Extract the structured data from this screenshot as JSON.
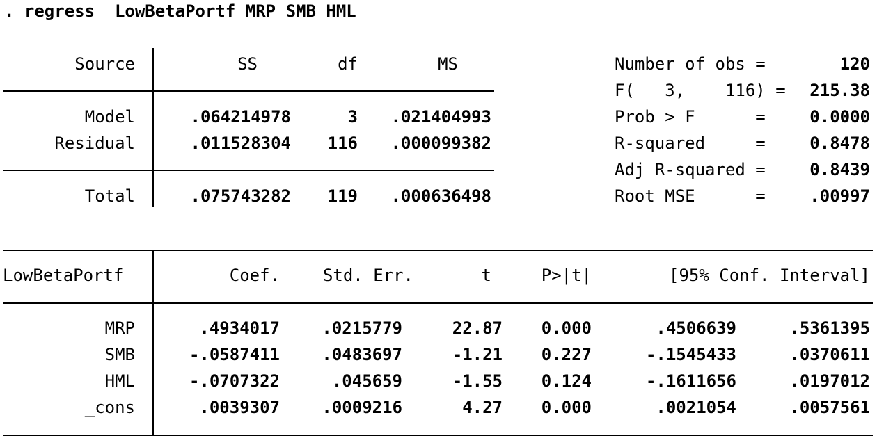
{
  "command": ". regress  LowBetaPortf MRP SMB HML",
  "anova": {
    "headers": [
      "Source",
      "SS",
      "df",
      "MS"
    ],
    "rows": [
      {
        "source": "Model",
        "ss": ".064214978",
        "df": "3",
        "ms": ".021404993"
      },
      {
        "source": "Residual",
        "ss": ".011528304",
        "df": "116",
        "ms": ".000099382"
      }
    ],
    "total": {
      "source": "Total",
      "ss": ".075743282",
      "df": "119",
      "ms": ".000636498"
    }
  },
  "stats": [
    {
      "label": "Number of obs =",
      "value": "120"
    },
    {
      "label": "F(   3,    116) =",
      "value": "215.38"
    },
    {
      "label": "Prob > F      =",
      "value": "0.0000"
    },
    {
      "label": "R-squared     =",
      "value": "0.8478"
    },
    {
      "label": "Adj R-squared =",
      "value": "0.8439"
    },
    {
      "label": "Root MSE      =",
      "value": ".00997"
    }
  ],
  "coef": {
    "headers": [
      "LowBetaPortf",
      "Coef.",
      "Std. Err.",
      "t",
      "P>|t|",
      "[95% Conf. Interval]"
    ],
    "rows": [
      {
        "name": "MRP",
        "coef": ".4934017",
        "se": ".0215779",
        "t": "22.87",
        "p": "0.000",
        "lo": ".4506639",
        "hi": ".5361395"
      },
      {
        "name": "SMB",
        "coef": "-.0587411",
        "se": ".0483697",
        "t": "-1.21",
        "p": "0.227",
        "lo": "-.1545433",
        "hi": ".0370611"
      },
      {
        "name": "HML",
        "coef": "-.0707322",
        "se": ".045659",
        "t": "-1.55",
        "p": "0.124",
        "lo": "-.1611656",
        "hi": ".0197012"
      },
      {
        "name": "_cons",
        "coef": ".0039307",
        "se": ".0009216",
        "t": "4.27",
        "p": "0.000",
        "lo": ".0021054",
        "hi": ".0057561"
      }
    ]
  }
}
